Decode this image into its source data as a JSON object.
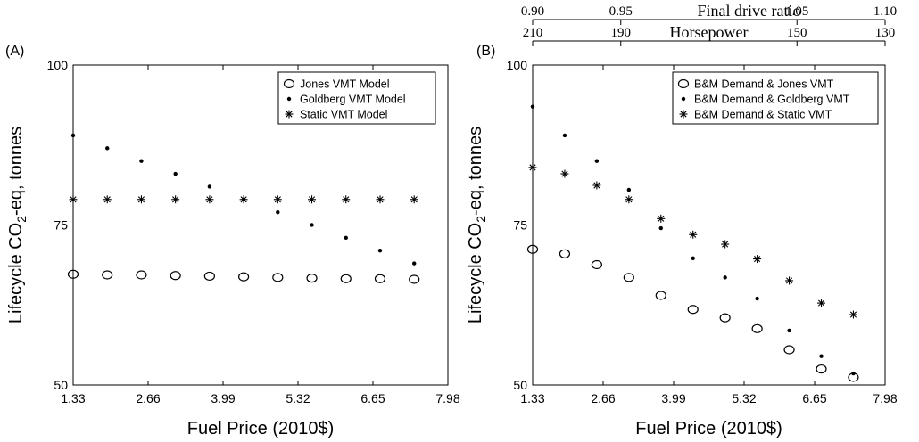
{
  "chart_data": [
    {
      "type": "scatter",
      "panel_label": "(A)",
      "xlabel": "Fuel Price (2010$)",
      "ylabel_parts": [
        "Lifecycle CO",
        "2",
        "-eq,  tonnes"
      ],
      "xlim": [
        1.33,
        7.98
      ],
      "ylim": [
        50,
        100
      ],
      "x_ticks": [
        "1.33",
        "2.66",
        "3.99",
        "5.32",
        "6.65",
        "7.98"
      ],
      "y_ticks": [
        "50",
        "75",
        "100"
      ],
      "grid": false,
      "legend_position": "top-right",
      "series": [
        {
          "name": "Jones VMT Model",
          "marker": "open-circle",
          "x": [
            1.33,
            1.995,
            2.66,
            3.325,
            3.99,
            4.655,
            5.32,
            5.985,
            6.65,
            7.315,
            7.98
          ],
          "y": [
            67.3,
            67.2,
            67.2,
            67.1,
            67.0,
            66.9,
            66.8,
            66.7,
            66.6,
            66.6,
            66.5
          ]
        },
        {
          "name": "Goldberg VMT Model",
          "marker": "dot",
          "x": [
            1.33,
            1.995,
            2.66,
            3.325,
            3.99,
            4.655,
            5.32,
            5.985,
            6.65,
            7.315,
            7.98
          ],
          "y": [
            89.0,
            87.0,
            85.0,
            83.0,
            81.0,
            79.0,
            77.0,
            75.0,
            73.0,
            71.0,
            69.0
          ]
        },
        {
          "name": "Static VMT Model",
          "marker": "star",
          "x": [
            1.33,
            1.995,
            2.66,
            3.325,
            3.99,
            4.655,
            5.32,
            5.985,
            6.65,
            7.315,
            7.98
          ],
          "y": [
            79.0,
            79.0,
            79.0,
            79.0,
            79.0,
            79.0,
            79.0,
            79.0,
            79.0,
            79.0,
            79.0
          ]
        }
      ]
    },
    {
      "type": "scatter",
      "panel_label": "(B)",
      "xlabel": "Fuel Price (2010$)",
      "ylabel_parts": [
        "Lifecycle CO",
        "2",
        "-eq,  tonnes"
      ],
      "xlim": [
        1.33,
        7.98
      ],
      "ylim": [
        50,
        100
      ],
      "x_ticks": [
        "1.33",
        "2.66",
        "3.99",
        "5.32",
        "6.65",
        "7.98"
      ],
      "y_ticks": [
        "50",
        "75",
        "100"
      ],
      "grid": false,
      "legend_position": "top-right",
      "secondary_axes": [
        {
          "title": "Final drive ratio",
          "range": [
            0.9,
            1.1
          ],
          "ticks": [
            "0.90",
            "0.95",
            "1.05",
            "1.10"
          ],
          "tick_values": [
            0.9,
            0.95,
            1.05,
            1.1
          ]
        },
        {
          "title": "Horsepower",
          "range": [
            210,
            130
          ],
          "ticks": [
            "210",
            "190",
            "150",
            "130"
          ],
          "tick_values": [
            210,
            190,
            150,
            130
          ]
        }
      ],
      "series": [
        {
          "name": "B&M Demand & Jones VMT",
          "marker": "open-circle",
          "x": [
            1.33,
            1.995,
            2.66,
            3.325,
            3.99,
            4.655,
            5.32,
            5.985,
            6.65,
            7.315,
            7.98
          ],
          "y": [
            71.2,
            70.5,
            68.8,
            66.8,
            64.0,
            61.8,
            60.5,
            58.8,
            55.5,
            52.5,
            51.2
          ]
        },
        {
          "name": "B&M Demand & Goldberg VMT",
          "marker": "dot",
          "x": [
            1.33,
            1.995,
            2.66,
            3.325,
            3.99,
            4.655,
            5.32,
            5.985,
            6.65,
            7.315,
            7.98
          ],
          "y": [
            93.5,
            89.0,
            85.0,
            80.5,
            74.5,
            69.8,
            66.8,
            63.5,
            58.5,
            54.5,
            51.8
          ]
        },
        {
          "name": "B&M Demand & Static VMT",
          "marker": "star",
          "x": [
            1.33,
            1.995,
            2.66,
            3.325,
            3.99,
            4.655,
            5.32,
            5.985,
            6.65,
            7.315,
            7.98
          ],
          "y": [
            84.0,
            83.0,
            81.2,
            79.0,
            76.0,
            73.5,
            72.0,
            69.7,
            66.3,
            62.8,
            61.0
          ]
        }
      ]
    }
  ]
}
